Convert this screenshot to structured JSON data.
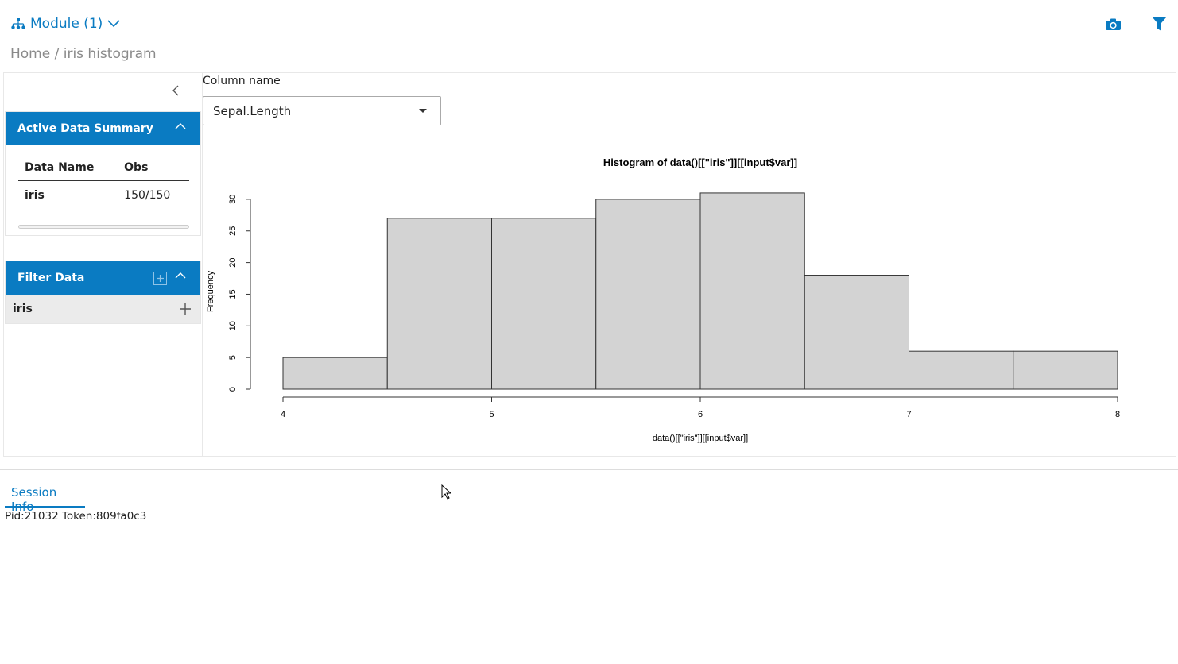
{
  "header": {
    "module_label": "Module (1)",
    "breadcrumb": "Home / iris histogram",
    "icons": [
      "sitemap-icon",
      "chevron-down-icon",
      "camera-icon",
      "filter-icon"
    ],
    "accent": "#0a7bc2"
  },
  "sidebar": {
    "summary": {
      "title": "Active Data Summary",
      "columns": [
        "Data Name",
        "Obs"
      ],
      "rows": [
        [
          "iris",
          "150/150"
        ]
      ]
    },
    "filter": {
      "title": "Filter Data",
      "datasets": [
        "iris"
      ]
    }
  },
  "main": {
    "column_label": "Column name",
    "column_value": "Sepal.Length"
  },
  "chart_data": {
    "type": "bar",
    "title": "Histogram of data()[[\"iris\"]][[input$var]]",
    "xlabel": "data()[[\"iris\"]][[input$var]]",
    "ylabel": "Frequency",
    "bins": [
      [
        4,
        4.5
      ],
      [
        4.5,
        5
      ],
      [
        5,
        5.5
      ],
      [
        5.5,
        6
      ],
      [
        6,
        6.5
      ],
      [
        6.5,
        7
      ],
      [
        7,
        7.5
      ],
      [
        7.5,
        8
      ]
    ],
    "values": [
      5,
      27,
      27,
      30,
      31,
      18,
      6,
      6
    ],
    "xlim": [
      4,
      8
    ],
    "ylim": [
      0,
      31
    ],
    "xticks": [
      "4",
      "5",
      "6",
      "7",
      "8"
    ],
    "yticks": [
      "0",
      "5",
      "10",
      "15",
      "20",
      "25",
      "30"
    ],
    "bar_color": "#d3d3d3"
  },
  "footer": {
    "tab": "Session Info",
    "session": "Pid:21032 Token:809fa0c3"
  }
}
